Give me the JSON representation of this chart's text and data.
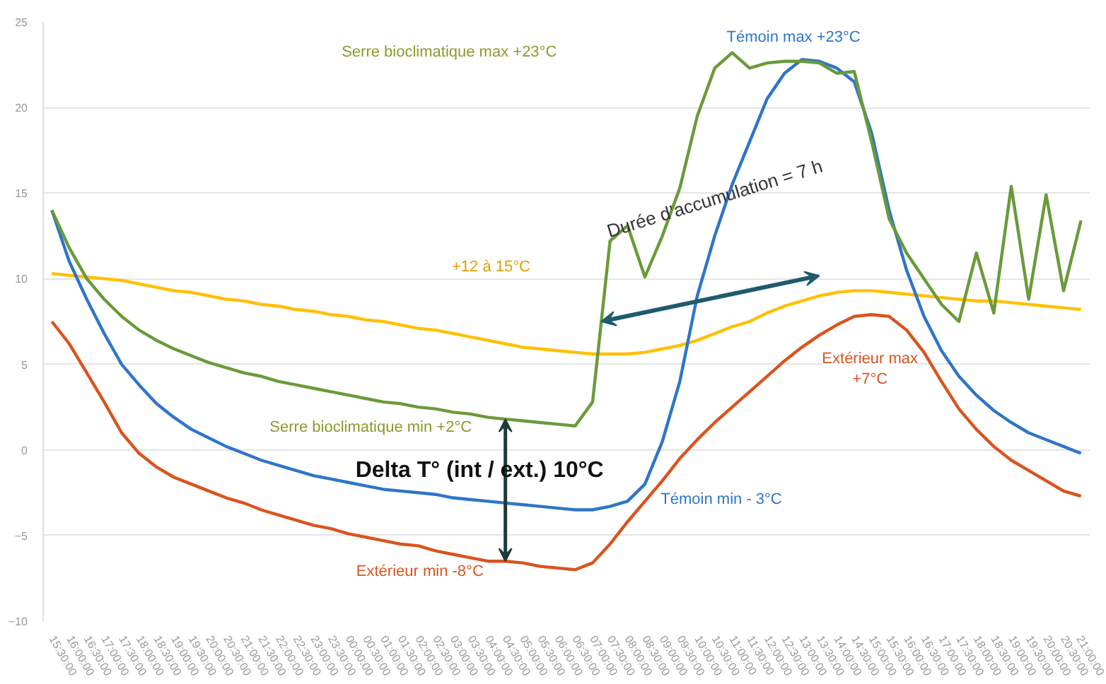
{
  "chart_data": {
    "type": "line",
    "categories": [
      "15:30:00",
      "16:00:00",
      "16:30:00",
      "17:00:00",
      "17:30:00",
      "18:00:00",
      "18:30:00",
      "19:00:00",
      "19:30:00",
      "20:00:00",
      "20:30:00",
      "21:00:00",
      "21:30:00",
      "22:00:00",
      "22:30:00",
      "23:00:00",
      "23:30:00",
      "00:00:00",
      "00:30:00",
      "01:00:00",
      "01:30:00",
      "02:00:00",
      "02:30:00",
      "03:00:00",
      "03:30:00",
      "04:00:00",
      "04:30:00",
      "05:00:00",
      "05:30:00",
      "06:00:00",
      "06:30:00",
      "07:00:00",
      "07:30:00",
      "08:00:00",
      "08:30:00",
      "09:00:00",
      "09:30:00",
      "10:00:00",
      "10:30:00",
      "11:00:00",
      "11:30:00",
      "12:00:00",
      "12:30:00",
      "13:00:00",
      "13:30:00",
      "14:00:00",
      "14:30:00",
      "15:00:00",
      "15:30:00",
      "16:00:00",
      "16:30:00",
      "17:00:00",
      "17:30:00",
      "18:00:00",
      "18:30:00",
      "19:00:00",
      "19:30:00",
      "20:00:00",
      "20:30:00",
      "21:00:00"
    ],
    "series": [
      {
        "color": "#ffc000",
        "values": [
          10.3,
          10.2,
          10.1,
          10.0,
          9.9,
          9.7,
          9.5,
          9.3,
          9.2,
          9.0,
          8.8,
          8.7,
          8.5,
          8.4,
          8.2,
          8.1,
          7.9,
          7.8,
          7.6,
          7.5,
          7.3,
          7.1,
          7.0,
          6.8,
          6.6,
          6.4,
          6.2,
          6.0,
          5.9,
          5.8,
          5.7,
          5.6,
          5.6,
          5.6,
          5.7,
          5.9,
          6.1,
          6.4,
          6.8,
          7.2,
          7.5,
          8.0,
          8.4,
          8.7,
          9.0,
          9.2,
          9.3,
          9.3,
          9.2,
          9.1,
          9.0,
          8.9,
          8.8,
          8.7,
          8.7,
          8.6,
          8.5,
          8.4,
          8.3,
          8.2
        ]
      },
      {
        "color": "#d9541e",
        "values": [
          7.5,
          6.2,
          4.5,
          2.8,
          1.0,
          -0.2,
          -1.0,
          -1.6,
          -2.0,
          -2.4,
          -2.8,
          -3.1,
          -3.5,
          -3.8,
          -4.1,
          -4.4,
          -4.6,
          -4.9,
          -5.1,
          -5.3,
          -5.5,
          -5.6,
          -5.9,
          -6.1,
          -6.3,
          -6.5,
          -6.5,
          -6.6,
          -6.8,
          -6.9,
          -7.0,
          -6.6,
          -5.5,
          -4.2,
          -3.0,
          -1.8,
          -0.5,
          0.6,
          1.6,
          2.5,
          3.4,
          4.3,
          5.2,
          6.0,
          6.7,
          7.3,
          7.8,
          7.9,
          7.8,
          7.0,
          5.7,
          4.0,
          2.4,
          1.2,
          0.2,
          -0.6,
          -1.2,
          -1.8,
          -2.4,
          -2.7
        ]
      },
      {
        "color": "#2e75c8",
        "values": [
          14.0,
          11.0,
          8.8,
          6.8,
          5.0,
          3.8,
          2.7,
          1.9,
          1.2,
          0.7,
          0.2,
          -0.2,
          -0.6,
          -0.9,
          -1.2,
          -1.5,
          -1.7,
          -1.9,
          -2.1,
          -2.3,
          -2.4,
          -2.5,
          -2.6,
          -2.8,
          -2.9,
          -3.0,
          -3.1,
          -3.2,
          -3.3,
          -3.4,
          -3.5,
          -3.5,
          -3.3,
          -3.0,
          -2.0,
          0.5,
          4.0,
          9.0,
          12.5,
          15.5,
          18.0,
          20.5,
          22.0,
          22.8,
          22.7,
          22.3,
          21.5,
          18.5,
          14.0,
          10.5,
          7.8,
          5.8,
          4.3,
          3.2,
          2.3,
          1.6,
          1.0,
          0.6,
          0.2,
          -0.2
        ]
      },
      {
        "color": "#6a9a3a",
        "values": [
          14.0,
          11.8,
          10.0,
          8.8,
          7.8,
          7.0,
          6.4,
          5.9,
          5.5,
          5.1,
          4.8,
          4.5,
          4.3,
          4.0,
          3.8,
          3.6,
          3.4,
          3.2,
          3.0,
          2.8,
          2.7,
          2.5,
          2.4,
          2.2,
          2.1,
          1.9,
          1.8,
          1.7,
          1.6,
          1.5,
          1.4,
          2.8,
          12.2,
          13.1,
          10.1,
          12.5,
          15.3,
          19.5,
          22.3,
          23.2,
          22.3,
          22.6,
          22.7,
          22.7,
          22.6,
          22.0,
          22.1,
          18.0,
          13.5,
          11.5,
          10.0,
          8.5,
          7.5,
          11.5,
          8.0,
          15.4,
          8.8,
          14.9,
          9.3,
          13.4
        ]
      }
    ],
    "ylim": [
      -10,
      25
    ],
    "yticks": [
      -10,
      -5,
      0,
      5,
      10,
      15,
      20,
      25
    ],
    "grid": "y",
    "annotations": [
      "Serre bioclimatique max +23°C",
      "Témoin max +23°C",
      "+12 à 15°C",
      "Durée d’accumulation = 7 h",
      "Extérieur max\n+7°C",
      "Serre bioclimatique min +2°C",
      "Delta T° (int / ext.)  10°C",
      "Témoin min - 3°C",
      "Extérieur min -8°C"
    ]
  }
}
